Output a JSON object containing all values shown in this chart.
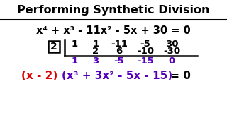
{
  "title": "Performing Synthetic Division",
  "bg_color": "#ffffff",
  "equation": "x⁴ + x³ - 11x² - 5x + 30 = 0",
  "divisor": "2",
  "row1": [
    "1",
    "1",
    "-11",
    "-5",
    "30"
  ],
  "row2": [
    "2",
    "6",
    "-10",
    "-30"
  ],
  "row3": [
    "1",
    "3",
    "-5",
    "-15",
    "0"
  ],
  "result_red": "(x - 2)",
  "result_purple": "(x³ + 3x² - 5x - 15)",
  "result_end": " = 0",
  "purple_color": "#5500bb",
  "red_color": "#dd0000",
  "black_color": "#000000",
  "title_bar_color": "#ffffff",
  "title_border_color": "#000000"
}
